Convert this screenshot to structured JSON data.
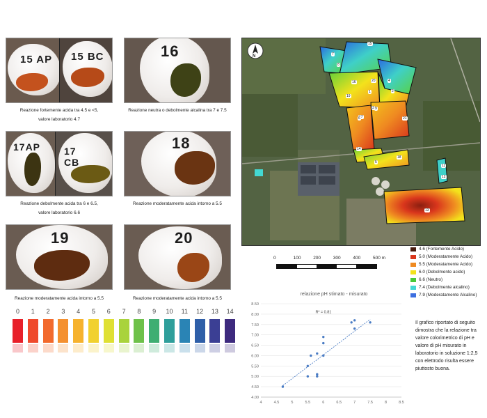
{
  "photos": [
    {
      "id": "p1",
      "labels": [
        "15 AP",
        "15 BC"
      ],
      "caption_lines": [
        "Reazione fortemente acida tra 4.5 e <5,",
        "valore laboratorio 4.7"
      ]
    },
    {
      "id": "p2",
      "labels": [
        "16"
      ],
      "caption_lines": [
        "Reazione neutra o debolmente alcalina tra 7 e 7.5"
      ]
    },
    {
      "id": "p3",
      "labels": [
        "17AP",
        "17 CB"
      ],
      "caption_lines": [
        "Reazione debolmente acida tra 6 e 6.5,",
        "valore laboratorio 6.6"
      ]
    },
    {
      "id": "p4",
      "labels": [
        "18"
      ],
      "caption_lines": [
        "Reazione moderatamente acida intorno a 5.5"
      ]
    },
    {
      "id": "p5",
      "labels": [
        "19"
      ],
      "caption_lines": [
        "Reazione moderatamente acida intorno a 5.5"
      ]
    },
    {
      "id": "p6",
      "labels": [
        "20"
      ],
      "caption_lines": [
        "Reazione moderatamente acida intorno a 5.5"
      ]
    }
  ],
  "ph_scale": {
    "numbers": [
      "0",
      "1",
      "2",
      "3",
      "4",
      "5",
      "6",
      "7",
      "8",
      "9",
      "10",
      "11",
      "12",
      "13",
      "14"
    ],
    "colors": [
      "#e8202a",
      "#ef4a2c",
      "#f26a2d",
      "#f4902f",
      "#f6b22e",
      "#f1d130",
      "#dfe034",
      "#a9d33c",
      "#6ec14a",
      "#3fae72",
      "#2f9f9b",
      "#2a84b5",
      "#2f5fa8",
      "#3b3f94",
      "#3d2a7e"
    ]
  },
  "map": {
    "north_symbol": "N",
    "field_labels": [
      "15",
      "7",
      "8",
      "16",
      "20",
      "4",
      "19",
      "1",
      "2",
      "3",
      "9",
      "17",
      "21",
      "6",
      "14",
      "18",
      "5",
      "11",
      "12",
      "13"
    ],
    "scale_ticks": [
      "0",
      "100",
      "200",
      "300",
      "400",
      "500 m"
    ]
  },
  "legend": [
    {
      "color": "#4a1d10",
      "text": "4.6 (Fortemente Acido)"
    },
    {
      "color": "#d9361c",
      "text": "5.0 (Moderatamente Acido)"
    },
    {
      "color": "#ef8a21",
      "text": "5.5 (Moderatamente Acido)"
    },
    {
      "color": "#f3e21c",
      "text": "6.0 (Debolmente acido)"
    },
    {
      "color": "#49c838",
      "text": "6.6 (Neutro)"
    },
    {
      "color": "#43d8d3",
      "text": "7.4 (Debolmente alcalino)"
    },
    {
      "color": "#3d6fe0",
      "text": "7.9 (Moderatamente Alcalino)"
    }
  ],
  "chart_data": {
    "type": "scatter",
    "title": "relazione pH stimato - misurato",
    "xlim": [
      4,
      8.5
    ],
    "ylim": [
      4.0,
      8.5
    ],
    "x_ticks": [
      "4",
      "4.5",
      "5",
      "5.5",
      "6",
      "6.5",
      "7",
      "7.5",
      "8",
      "8.5"
    ],
    "y_ticks": [
      "4.00",
      "4.50",
      "5.00",
      "5.50",
      "6.00",
      "6.50",
      "7.00",
      "7.50",
      "8.00",
      "8.50"
    ],
    "annotation": "R² = 0.81",
    "points": [
      [
        4.7,
        4.5
      ],
      [
        5.5,
        5.0
      ],
      [
        5.5,
        5.5
      ],
      [
        5.6,
        6.0
      ],
      [
        5.8,
        5.0
      ],
      [
        5.8,
        5.1
      ],
      [
        5.8,
        6.1
      ],
      [
        6.0,
        6.0
      ],
      [
        6.0,
        6.6
      ],
      [
        6.0,
        6.9
      ],
      [
        6.9,
        7.6
      ],
      [
        7.0,
        7.3
      ],
      [
        7.0,
        7.7
      ],
      [
        7.5,
        7.6
      ]
    ],
    "trendline": [
      [
        4.7,
        4.55
      ],
      [
        7.5,
        7.75
      ]
    ],
    "grid": true
  },
  "description": "Il grafico riportato di seguito dimostra che la relazione tra valore colorimetrico di pH e valore di pH misurato in laboratorio in soluzione 1:2,5 con elettrodo risulta essere piuttosto buona."
}
